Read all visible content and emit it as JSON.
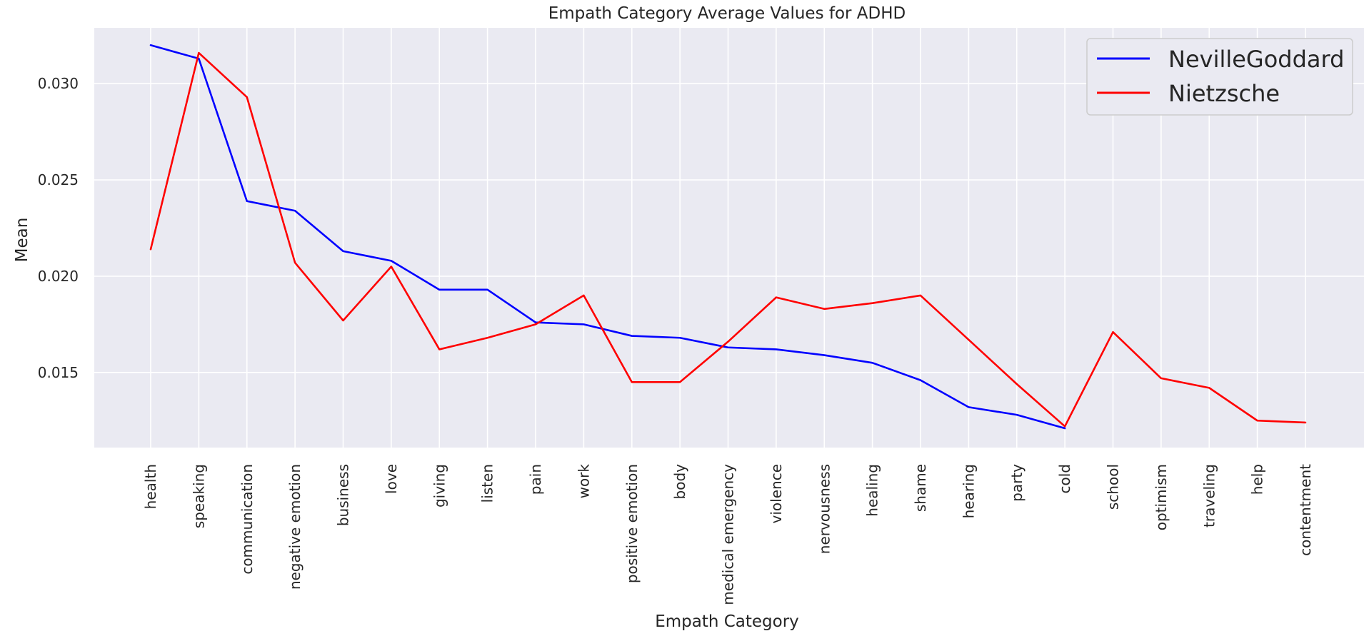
{
  "chart_data": {
    "type": "line",
    "title": "Empath Category Average Values for ADHD",
    "xlabel": "Empath Category",
    "ylabel": "Mean",
    "categories": [
      "health",
      "speaking",
      "communication",
      "negative emotion",
      "business",
      "love",
      "giving",
      "listen",
      "pain",
      "work",
      "positive emotion",
      "body",
      "medical emergency",
      "violence",
      "nervousness",
      "healing",
      "shame",
      "hearing",
      "party",
      "cold",
      "school",
      "optimism",
      "traveling",
      "help",
      "contentment"
    ],
    "ylim": [
      0.0111,
      0.0329
    ],
    "yticks": [
      0.015,
      0.02,
      0.025,
      0.03
    ],
    "ytick_labels": [
      "0.015",
      "0.020",
      "0.025",
      "0.030"
    ],
    "grid": true,
    "legend_position": "top-right",
    "series": [
      {
        "name": "NevilleGoddard",
        "color": "#0000ff",
        "values": [
          0.032,
          0.0313,
          0.0239,
          0.0234,
          0.0213,
          0.0208,
          0.0193,
          0.0193,
          0.0176,
          0.0175,
          0.0169,
          0.0168,
          0.0163,
          0.0162,
          0.0159,
          0.0155,
          0.0146,
          0.0132,
          0.0128,
          0.0121,
          null,
          null,
          null,
          null,
          null
        ]
      },
      {
        "name": "Nietzsche",
        "color": "#ff0000",
        "values": [
          0.0214,
          0.0316,
          0.0293,
          0.0207,
          0.0177,
          0.0205,
          0.0162,
          0.0168,
          0.0175,
          0.019,
          0.0145,
          0.0145,
          0.0166,
          0.0189,
          0.0183,
          0.0186,
          0.019,
          0.0167,
          0.0144,
          0.0122,
          0.0171,
          0.0147,
          0.0142,
          0.0125,
          0.0124
        ]
      }
    ]
  }
}
